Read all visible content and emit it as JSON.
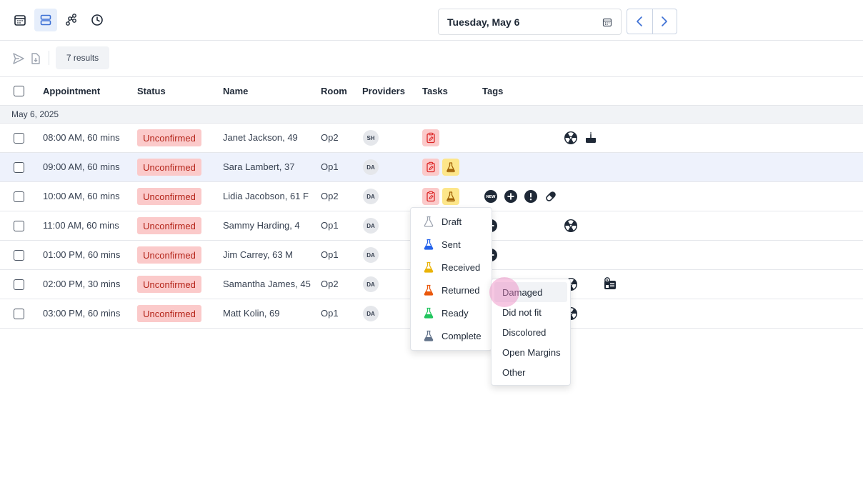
{
  "header": {
    "date_label": "Tuesday, May 6"
  },
  "toolbar": {
    "results_label": "7 results"
  },
  "table": {
    "columns": [
      "Appointment",
      "Status",
      "Name",
      "Room",
      "Providers",
      "Tasks",
      "Tags"
    ],
    "group_label": "May 6, 2025",
    "rows": [
      {
        "time": "08:00 AM, 60 mins",
        "status": "Unconfirmed",
        "name": "Janet Jackson, 49",
        "room": "Op2",
        "provider": "SH"
      },
      {
        "time": "09:00 AM, 60 mins",
        "status": "Unconfirmed",
        "name": "Sara Lambert, 37",
        "room": "Op1",
        "provider": "DA"
      },
      {
        "time": "10:00 AM, 60 mins",
        "status": "Unconfirmed",
        "name": "Lidia Jacobson, 61 F",
        "room": "Op2",
        "provider": "DA"
      },
      {
        "time": "11:00 AM, 60 mins",
        "status": "Unconfirmed",
        "name": "Sammy Harding, 4",
        "room": "Op1",
        "provider": "DA"
      },
      {
        "time": "01:00 PM, 60 mins",
        "status": "Unconfirmed",
        "name": "Jim Carrey, 63 M",
        "room": "Op1",
        "provider": "DA"
      },
      {
        "time": "02:00 PM, 30 mins",
        "status": "Unconfirmed",
        "name": "Samantha James, 45",
        "room": "Op2",
        "provider": "DA"
      },
      {
        "time": "03:00 PM, 60 mins",
        "status": "Unconfirmed",
        "name": "Matt Kolin, 69",
        "room": "Op1",
        "provider": "DA"
      }
    ]
  },
  "lab_menu": {
    "items": [
      {
        "label": "Draft",
        "color": "#9ca3af"
      },
      {
        "label": "Sent",
        "color": "#2563eb"
      },
      {
        "label": "Received",
        "color": "#eab308"
      },
      {
        "label": "Returned",
        "color": "#ea580c"
      },
      {
        "label": "Ready",
        "color": "#22c55e"
      },
      {
        "label": "Complete",
        "color": "#64748b"
      }
    ]
  },
  "returned_submenu": {
    "items": [
      "Damaged",
      "Did not fit",
      "Discolored",
      "Open Margins",
      "Other"
    ]
  },
  "icons": {
    "view_icons": [
      "calendar-icon",
      "rows-icon",
      "molecule-icon",
      "clock-icon"
    ],
    "tag_icons": [
      "radiation-icon",
      "cake-icon",
      "new-badge-icon",
      "plus-circle-icon",
      "alert-icon",
      "pill-icon",
      "id-card-icon"
    ]
  },
  "colors": {
    "accent": "#3b6fd4",
    "status_bg": "#fbcaca",
    "status_text": "#b42318",
    "task_red": "#fbcaca",
    "task_yellow": "#fde68a"
  }
}
